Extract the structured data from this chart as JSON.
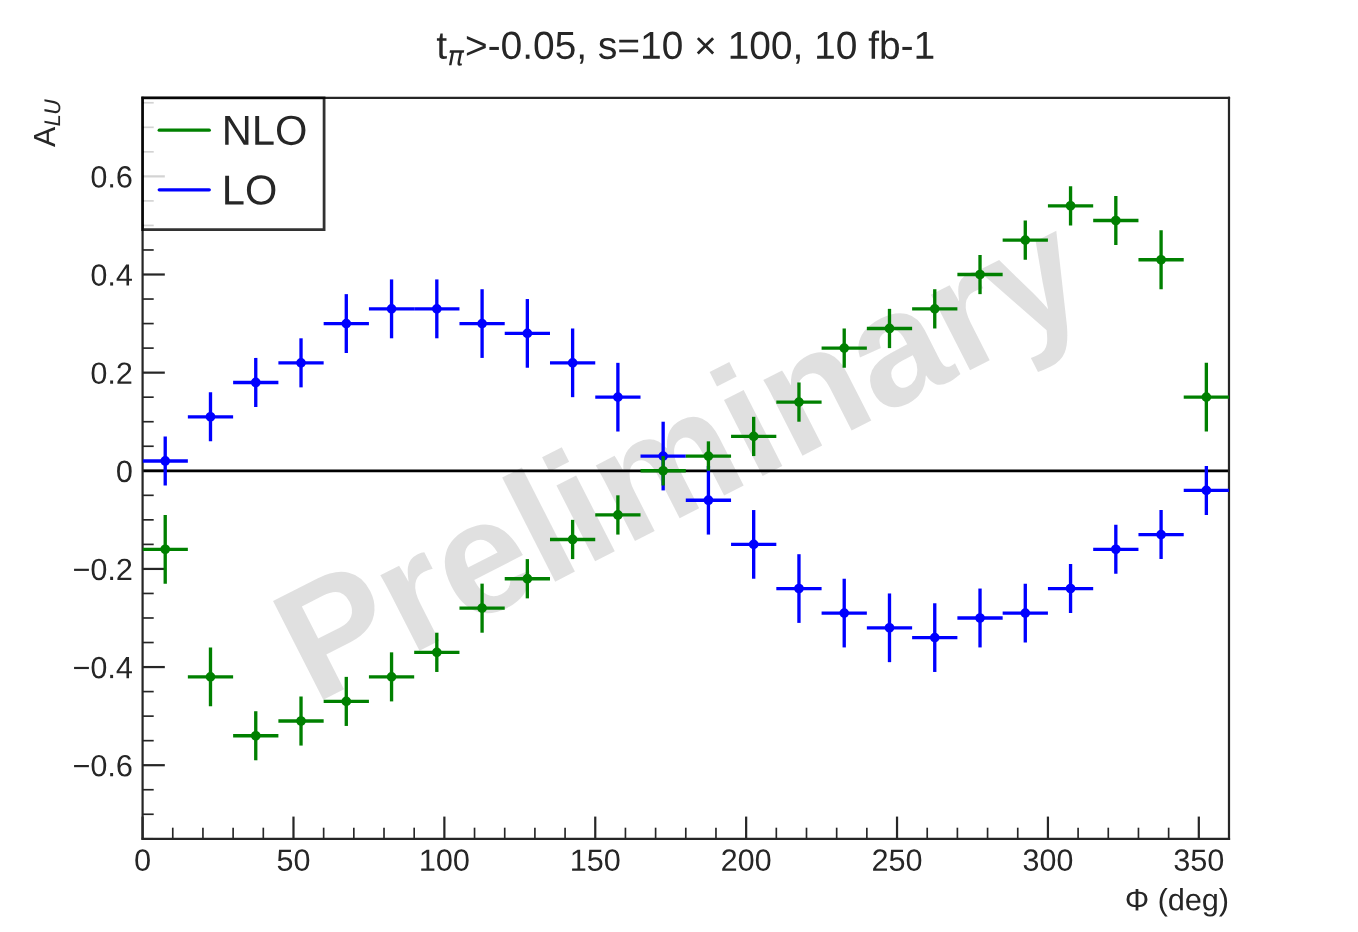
{
  "chart_data": {
    "type": "scatter",
    "title": "t$_{π}$>-0.05, s=10 × 100, 10 fb-1",
    "xlabel": "Φ (deg)",
    "ylabel": "A$_{LU}$",
    "x": [
      7.5,
      22.5,
      37.5,
      52.5,
      67.5,
      82.5,
      97.5,
      112.5,
      127.5,
      142.5,
      157.5,
      172.5,
      187.5,
      202.5,
      217.5,
      232.5,
      247.5,
      262.5,
      277.5,
      292.5,
      307.5,
      322.5,
      337.5,
      352.5
    ],
    "series": [
      {
        "name": "NLO",
        "color": "#008000",
        "values": [
          -0.16,
          -0.42,
          -0.54,
          -0.51,
          -0.47,
          -0.42,
          -0.37,
          -0.28,
          -0.22,
          -0.14,
          -0.09,
          0.0,
          0.03,
          0.07,
          0.14,
          0.25,
          0.29,
          0.33,
          0.4,
          0.47,
          0.54,
          0.51,
          0.43,
          0.15
        ],
        "errors": [
          0.07,
          0.06,
          0.05,
          0.05,
          0.05,
          0.05,
          0.04,
          0.05,
          0.04,
          0.04,
          0.04,
          0.03,
          0.03,
          0.04,
          0.04,
          0.04,
          0.04,
          0.04,
          0.04,
          0.04,
          0.04,
          0.05,
          0.06,
          0.07
        ],
        "xerrors": [
          7.5,
          7.5,
          7.5,
          7.5,
          7.5,
          7.5,
          7.5,
          7.5,
          7.5,
          7.5,
          7.5,
          7.5,
          7.5,
          7.5,
          7.5,
          7.5,
          7.5,
          7.5,
          7.5,
          7.5,
          7.5,
          7.5,
          7.5,
          7.5
        ]
      },
      {
        "name": "LO",
        "color": "#0000ff",
        "values": [
          0.02,
          0.11,
          0.18,
          0.22,
          0.3,
          0.33,
          0.33,
          0.3,
          0.28,
          0.22,
          0.15,
          0.03,
          -0.06,
          -0.15,
          -0.24,
          -0.29,
          -0.32,
          -0.34,
          -0.3,
          -0.29,
          -0.24,
          -0.16,
          -0.13,
          -0.04
        ],
        "errors": [
          0.05,
          0.05,
          0.05,
          0.05,
          0.06,
          0.06,
          0.06,
          0.07,
          0.07,
          0.07,
          0.07,
          0.07,
          0.07,
          0.07,
          0.07,
          0.07,
          0.07,
          0.07,
          0.06,
          0.06,
          0.05,
          0.05,
          0.05,
          0.05
        ],
        "xerrors": [
          7.5,
          7.5,
          7.5,
          7.5,
          7.5,
          7.5,
          7.5,
          7.5,
          7.5,
          7.5,
          7.5,
          7.5,
          7.5,
          7.5,
          7.5,
          7.5,
          7.5,
          7.5,
          7.5,
          7.5,
          7.5,
          7.5,
          7.5,
          7.5
        ]
      }
    ],
    "xlim": [
      0,
      360
    ],
    "ylim": [
      -0.75,
      0.76
    ],
    "xticks": [
      0,
      50,
      100,
      150,
      200,
      250,
      300,
      350
    ],
    "yticks": [
      {
        "value": -0.6,
        "label": "−0.6"
      },
      {
        "value": -0.4,
        "label": "−0.4"
      },
      {
        "value": -0.2,
        "label": "−0.2"
      },
      0,
      0.2,
      0.4,
      0.6
    ],
    "ref_lines": [
      {
        "axis": "y",
        "value": 0,
        "color": "#000000"
      }
    ],
    "annotations": [
      "Preliminary"
    ],
    "legend": "top left",
    "grid": false
  }
}
